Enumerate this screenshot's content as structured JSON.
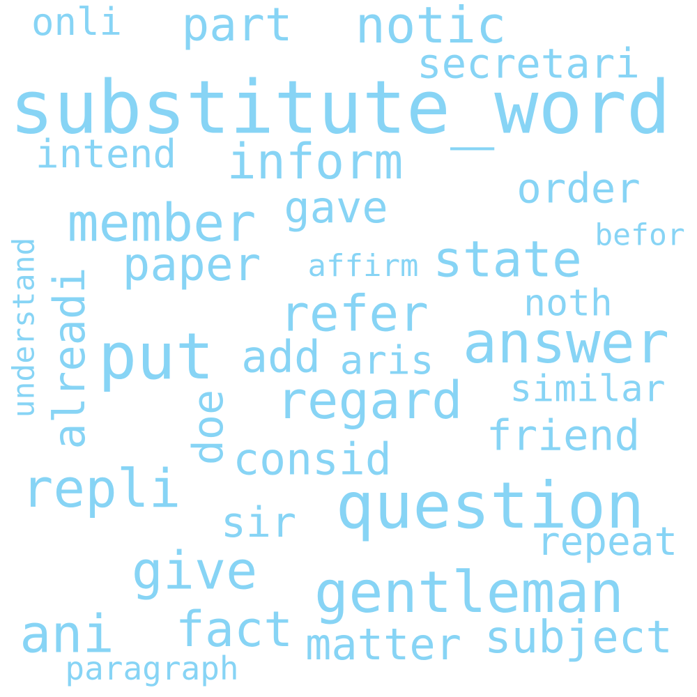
{
  "style": {
    "word_color": "#87d4f5",
    "background": "#ffffff"
  },
  "words": {
    "onli": "onli",
    "part": "part",
    "notic": "notic",
    "secretari": "secretari",
    "substitute_word": "substitute_word",
    "intend": "intend",
    "inform": "inform",
    "order": "order",
    "member": "member",
    "gave": "gave",
    "befor": "befor",
    "paper": "paper",
    "affirm": "affirm",
    "state": "state",
    "understand": "understand",
    "alreadi": "alreadi",
    "refer": "refer",
    "noth": "noth",
    "answer": "answer",
    "put": "put",
    "add": "add",
    "aris": "aris",
    "similar": "similar",
    "doe": "doe",
    "regard": "regard",
    "friend": "friend",
    "consid": "consid",
    "repli": "repli",
    "question": "question",
    "sir": "sir",
    "repeat": "repeat",
    "give": "give",
    "gentleman": "gentleman",
    "ani": "ani",
    "fact": "fact",
    "matter": "matter",
    "subject": "subject",
    "paragraph": "paragraph"
  }
}
